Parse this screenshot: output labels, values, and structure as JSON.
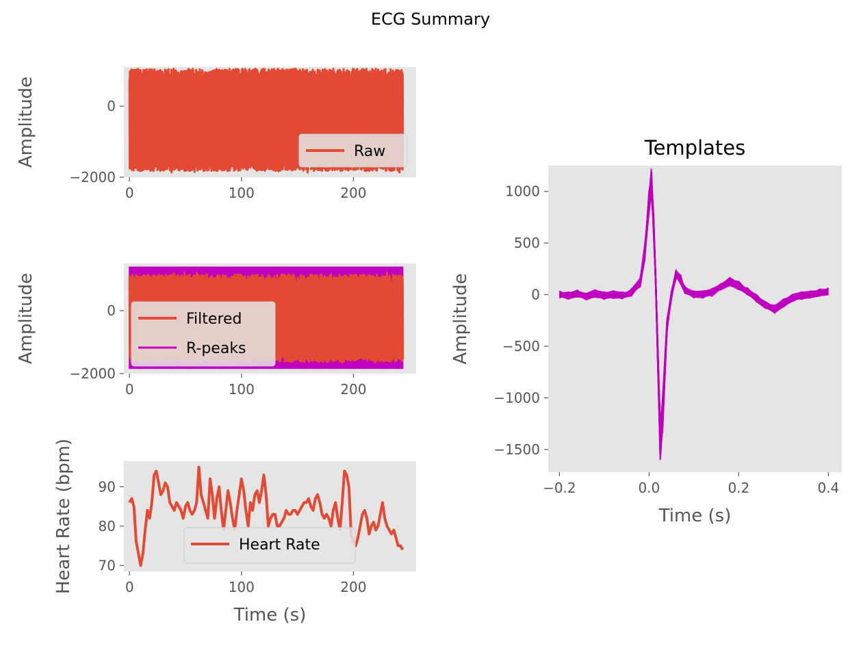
{
  "figure": {
    "suptitle": "ECG Summary"
  },
  "colors": {
    "axes_bg": "#E5E5E5",
    "tick_label": "#555555",
    "label": "#555555",
    "raw_line": "#E24A33",
    "filtered_line": "#E24A33",
    "rpeaks": "#BF00BF",
    "heart_rate_line": "#E24A33",
    "templates": "#BF00BF",
    "legend_bg": "#E5E5E5",
    "legend_border": "#CCCCCC"
  },
  "chart_data": [
    {
      "id": "raw",
      "type": "line",
      "title": "",
      "xlabel": "",
      "ylabel": "Amplitude",
      "xlim": [
        -5,
        256
      ],
      "ylim": [
        -2000,
        1100
      ],
      "xticks": [
        0,
        100,
        200
      ],
      "xtick_labels": [
        "0",
        "100",
        "200"
      ],
      "yticks": [
        -2000,
        0
      ],
      "ytick_labels": [
        "−2000",
        "0"
      ],
      "legend": {
        "location": "lower right",
        "entries": [
          "Raw"
        ]
      },
      "series": [
        {
          "name": "Raw",
          "kind": "dense-band",
          "x_range": [
            0,
            244
          ],
          "upper": 900,
          "lower": -1700,
          "peak_max": 1050,
          "trough_min": -1900
        }
      ]
    },
    {
      "id": "filtered",
      "type": "line",
      "title": "",
      "xlabel": "",
      "ylabel": "Amplitude",
      "xlim": [
        -5,
        256
      ],
      "ylim": [
        -2000,
        1500
      ],
      "xticks": [
        0,
        100,
        200
      ],
      "xtick_labels": [
        "0",
        "100",
        "200"
      ],
      "yticks": [
        -2000,
        0
      ],
      "ytick_labels": [
        "−2000",
        "0"
      ],
      "legend": {
        "location": "center left",
        "entries": [
          "Filtered",
          "R-peaks"
        ]
      },
      "series": [
        {
          "name": "R-peaks",
          "kind": "vertical-lines",
          "x_range": [
            0,
            244
          ],
          "ymin": -1850,
          "ymax": 1400
        },
        {
          "name": "Filtered",
          "kind": "dense-band",
          "x_range": [
            0,
            244
          ],
          "upper": 1000,
          "lower": -1500,
          "peak_max": 1200,
          "trough_min": -1650
        }
      ]
    },
    {
      "id": "heart_rate",
      "type": "line",
      "title": "",
      "xlabel": "Time (s)",
      "ylabel": "Heart Rate (bpm)",
      "xlim": [
        -5,
        256
      ],
      "ylim": [
        68.5,
        96.5
      ],
      "xticks": [
        0,
        100,
        200
      ],
      "xtick_labels": [
        "0",
        "100",
        "200"
      ],
      "yticks": [
        70,
        80,
        90
      ],
      "ytick_labels": [
        "70",
        "80",
        "90"
      ],
      "legend": {
        "location": "lower right",
        "entries": [
          "Heart Rate"
        ]
      },
      "series": [
        {
          "name": "Heart Rate",
          "x": [
            0,
            2,
            4,
            6,
            8,
            10,
            12,
            14,
            16,
            18,
            20,
            22,
            24,
            26,
            28,
            30,
            32,
            34,
            36,
            38,
            40,
            42,
            44,
            46,
            48,
            50,
            52,
            54,
            56,
            58,
            60,
            62,
            64,
            66,
            68,
            70,
            72,
            74,
            76,
            78,
            80,
            82,
            84,
            86,
            88,
            90,
            92,
            94,
            96,
            98,
            100,
            102,
            104,
            106,
            108,
            110,
            112,
            114,
            116,
            118,
            120,
            122,
            124,
            126,
            128,
            130,
            132,
            134,
            136,
            138,
            140,
            142,
            144,
            146,
            148,
            150,
            152,
            154,
            156,
            158,
            160,
            162,
            164,
            166,
            168,
            170,
            172,
            174,
            176,
            178,
            180,
            182,
            184,
            186,
            188,
            190,
            192,
            194,
            196,
            198,
            200,
            202,
            204,
            206,
            208,
            210,
            212,
            214,
            216,
            218,
            220,
            222,
            224,
            226,
            228,
            230,
            232,
            234,
            236,
            238,
            240,
            242,
            244
          ],
          "y": [
            86,
            87,
            85,
            76,
            73,
            70,
            73,
            79,
            84,
            82,
            86,
            93,
            94,
            91,
            88,
            89,
            91,
            90,
            86,
            85,
            84,
            86,
            85,
            84,
            82,
            85,
            86,
            84,
            83,
            84,
            86,
            95,
            88,
            86,
            84,
            82,
            92,
            88,
            82,
            87,
            90,
            84,
            79,
            84,
            89,
            86,
            82,
            79,
            84,
            88,
            92,
            89,
            84,
            80,
            86,
            84,
            88,
            89,
            86,
            89,
            93,
            88,
            80,
            82,
            83,
            83,
            80,
            80,
            81,
            82,
            84,
            83,
            83,
            84,
            84,
            83,
            84,
            85,
            86,
            86,
            87,
            85,
            84,
            87,
            88,
            86,
            83,
            82,
            83,
            82,
            80,
            84,
            86,
            82,
            79,
            86,
            94,
            93,
            90,
            78,
            76,
            75,
            77,
            80,
            83,
            84,
            82,
            78,
            80,
            81,
            79,
            80,
            83,
            86,
            82,
            80,
            79,
            78,
            79,
            77,
            75,
            75,
            74
          ],
          "values_note_free": true
        }
      ]
    },
    {
      "id": "templates",
      "type": "line",
      "title": "Templates",
      "xlabel": "Time (s)",
      "ylabel": "Amplitude",
      "xlim": [
        -0.225,
        0.43
      ],
      "ylim": [
        -1720,
        1250
      ],
      "xticks": [
        -0.2,
        0.0,
        0.2,
        0.4
      ],
      "xtick_labels": [
        "−0.2",
        "0.0",
        "0.2",
        "0.4"
      ],
      "yticks": [
        -1500,
        -1000,
        -500,
        0,
        500,
        1000
      ],
      "ytick_labels": [
        "−1500",
        "−1000",
        "−500",
        "0",
        "500",
        "1000"
      ],
      "legend": null,
      "series": [
        {
          "name": "",
          "x": [
            -0.2,
            -0.18,
            -0.16,
            -0.14,
            -0.12,
            -0.1,
            -0.08,
            -0.06,
            -0.04,
            -0.02,
            -0.01,
            0.0,
            0.005,
            0.01,
            0.015,
            0.02,
            0.025,
            0.03,
            0.04,
            0.05,
            0.06,
            0.07,
            0.08,
            0.1,
            0.12,
            0.14,
            0.16,
            0.18,
            0.2,
            0.22,
            0.24,
            0.26,
            0.28,
            0.3,
            0.32,
            0.34,
            0.36,
            0.38,
            0.4
          ],
          "y": [
            0,
            -10,
            10,
            -20,
            10,
            -10,
            0,
            -10,
            20,
            120,
            400,
            900,
            1100,
            700,
            100,
            -700,
            -1450,
            -1200,
            -300,
            0,
            200,
            150,
            50,
            0,
            0,
            20,
            80,
            130,
            90,
            30,
            -40,
            -100,
            -140,
            -80,
            -30,
            -10,
            0,
            20,
            30
          ]
        }
      ]
    }
  ]
}
